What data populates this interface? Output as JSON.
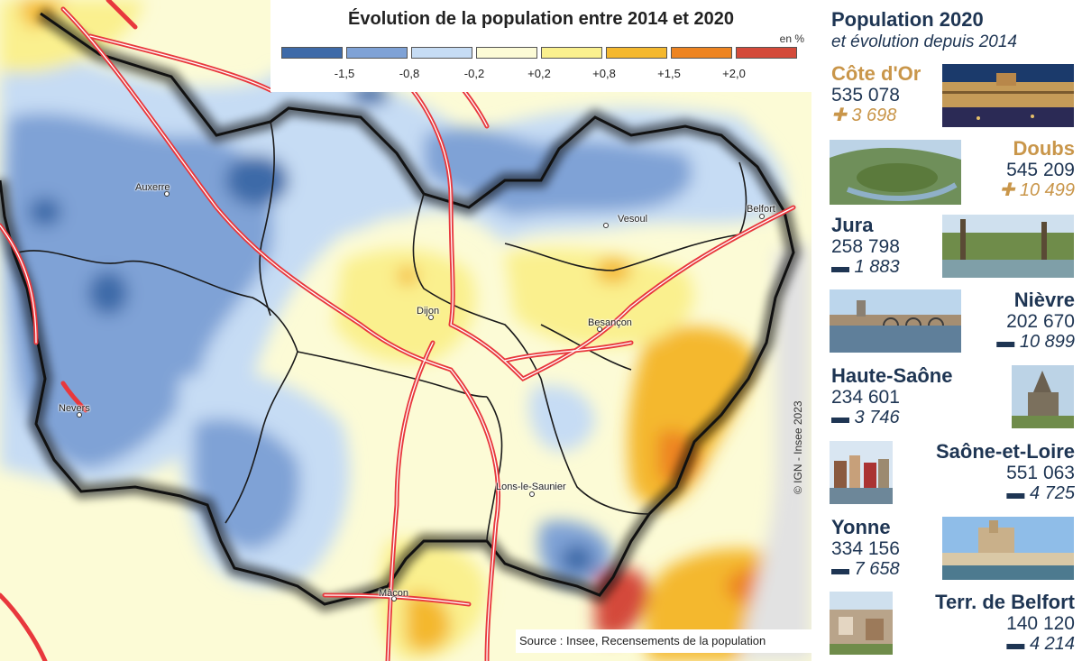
{
  "legend": {
    "title": "Évolution de la population entre 2014 et 2020",
    "unit": "en %",
    "colors": [
      "#3e6aa8",
      "#7fa2d6",
      "#c6dcf4",
      "#fcfbd6",
      "#faf08e",
      "#f4b82e",
      "#ed8421",
      "#d44a3a"
    ],
    "thresholds": [
      "-1,5",
      "-0,8",
      "-0,2",
      "+0,2",
      "+0,8",
      "+1,5",
      "+2,0"
    ]
  },
  "map": {
    "cities": [
      "Auxerre",
      "Vesoul",
      "Belfort",
      "Dijon",
      "Besançon",
      "Nevers",
      "Lons-le-Saunier",
      "Mâcon"
    ],
    "copyright": "© IGN - Insee 2023",
    "source": "Source : Insee, Recensements de la population"
  },
  "panel": {
    "title": "Population 2020",
    "subtitle": "et évolution depuis 2014",
    "departments": [
      {
        "name": "Côte d'Or",
        "population": "535 078",
        "evolution": "✚ 3 698",
        "photo": "dijon-palace-photo"
      },
      {
        "name": "Doubs",
        "population": "545 209",
        "evolution": "✚ 10 499",
        "photo": "doubs-river-loop-photo"
      },
      {
        "name": "Jura",
        "population": "258 798",
        "evolution": "▬ 1 883",
        "photo": "jura-park-photo"
      },
      {
        "name": "Nièvre",
        "population": "202 670",
        "evolution": "▬ 10 899",
        "photo": "nevers-bridge-photo"
      },
      {
        "name": "Haute-Saône",
        "population": "234 601",
        "evolution": "▬ 3 746",
        "photo": "haute-saone-monument-photo"
      },
      {
        "name": "Saône-et-Loire",
        "population": "551 063",
        "evolution": "▬ 4 725",
        "photo": "saone-riverside-photo"
      },
      {
        "name": "Yonne",
        "population": "334 156",
        "evolution": "▬ 7 658",
        "photo": "auxerre-cathedral-photo"
      },
      {
        "name": "Terr. de Belfort",
        "population": "140 120",
        "evolution": "▬ 4 214",
        "photo": "belfort-town-photo"
      }
    ]
  }
}
